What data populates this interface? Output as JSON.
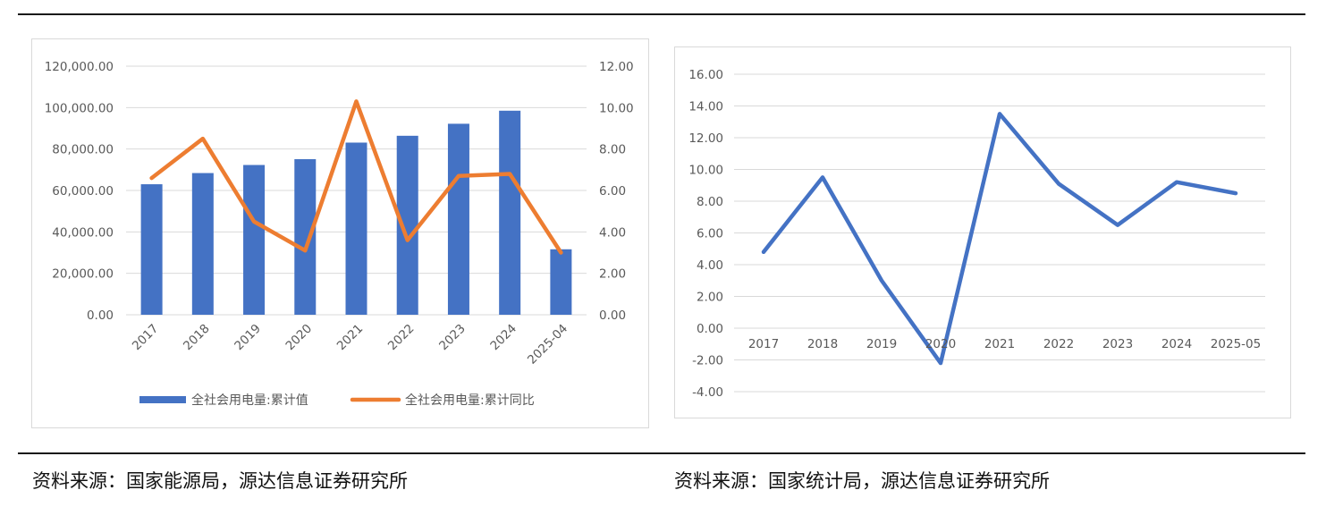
{
  "chart_data": [
    {
      "type": "bar+line",
      "categories": [
        "2017",
        "2018",
        "2019",
        "2020",
        "2021",
        "2022",
        "2023",
        "2024",
        "2025-04"
      ],
      "series": [
        {
          "name": "全社会用电量:累计值",
          "type": "bar",
          "axis": "left",
          "values": [
            63000,
            68400,
            72300,
            75100,
            83100,
            86400,
            92200,
            98500,
            31600
          ]
        },
        {
          "name": "全社会用电量:累计同比",
          "type": "line",
          "axis": "right",
          "values": [
            6.6,
            8.5,
            4.5,
            3.1,
            10.3,
            3.6,
            6.7,
            6.8,
            3.0
          ]
        }
      ],
      "y_left": {
        "ylim": [
          0,
          120000
        ],
        "ticks": [
          "0.00",
          "20,000.00",
          "40,000.00",
          "60,000.00",
          "80,000.00",
          "100,000.00",
          "120,000.00"
        ]
      },
      "y_right": {
        "ylim": [
          0,
          12
        ],
        "ticks": [
          "0.00",
          "2.00",
          "4.00",
          "6.00",
          "8.00",
          "10.00",
          "12.00"
        ]
      },
      "grid": true,
      "legend": "bottom",
      "colors": {
        "bar": "#4472c4",
        "line": "#ed7d31"
      }
    },
    {
      "type": "line",
      "categories": [
        "2017",
        "2018",
        "2019",
        "2020",
        "2021",
        "2022",
        "2023",
        "2024",
        "2025-05"
      ],
      "series": [
        {
          "values": [
            4.8,
            9.5,
            3.0,
            -2.2,
            13.5,
            9.1,
            6.5,
            9.2,
            8.5
          ]
        }
      ],
      "ylim": [
        -4,
        16
      ],
      "yticks": [
        "-4.00",
        "-2.00",
        "0.00",
        "2.00",
        "4.00",
        "6.00",
        "8.00",
        "10.00",
        "12.00",
        "14.00",
        "16.00"
      ],
      "grid": true,
      "colors": {
        "line": "#4472c4"
      }
    }
  ],
  "captions": {
    "left": "资料来源：国家能源局，源达信息证券研究所",
    "right": "资料来源：国家统计局，源达信息证券研究所"
  }
}
